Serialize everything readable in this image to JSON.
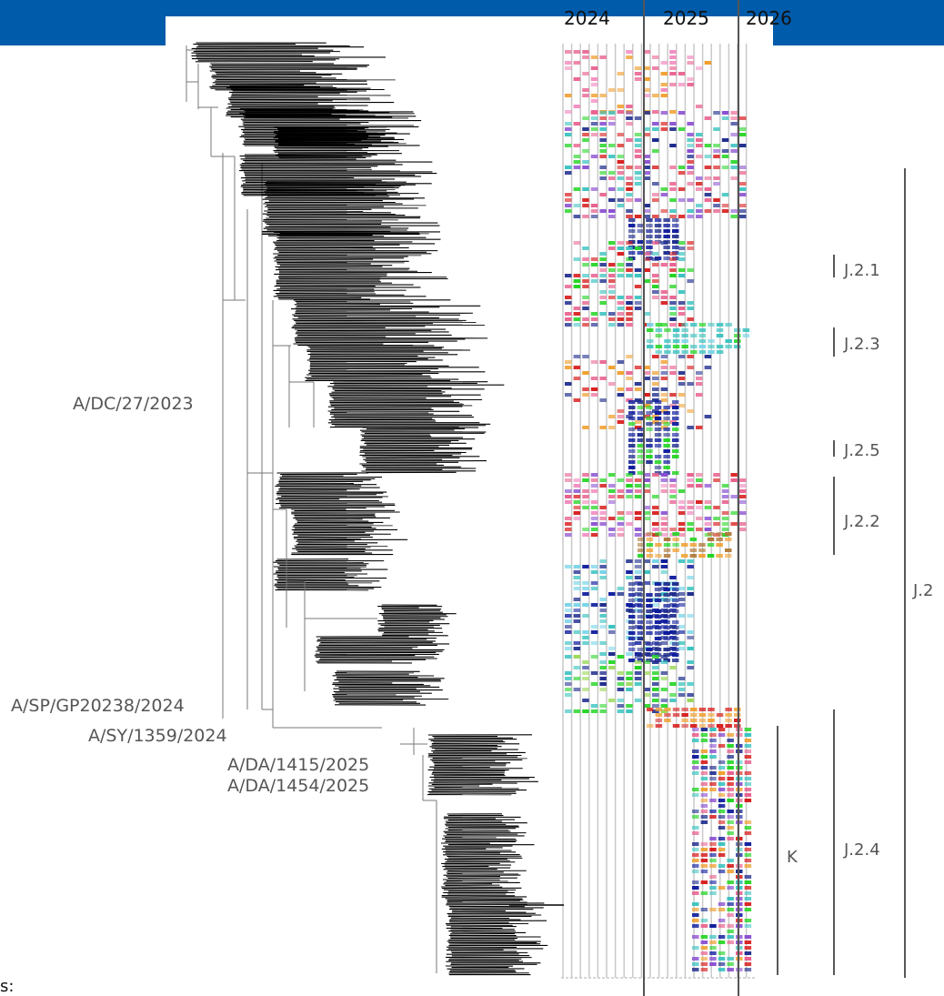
{
  "colors": {
    "banner": "#005BAA",
    "tree": "#000000",
    "label": "#555555",
    "grid": "#c9c9c9",
    "divider": "#555555",
    "palette": [
      "#1c2a8c",
      "#0c1a9c",
      "#22d422",
      "#d81e1e",
      "#e8608f",
      "#3bc3c0",
      "#8a4fd1",
      "#f0a030",
      "#77d4e8",
      "#b07a3a",
      "#f28cc0",
      "#9bd85a"
    ]
  },
  "timeline": {
    "years": [
      "2024",
      "2025",
      "2026"
    ]
  },
  "strains": [
    {
      "label": "A/DC/27/2023"
    },
    {
      "label": "A/SP/GP20238/2024"
    },
    {
      "label": "A/SY/1359/2024"
    },
    {
      "label": "A/DA/1415/2025"
    },
    {
      "label": "A/DA/1454/2025"
    }
  ],
  "clades": [
    {
      "label": "J.2.1"
    },
    {
      "label": "J.2.3"
    },
    {
      "label": "J.2.5"
    },
    {
      "label": "J.2.2"
    },
    {
      "label": "J.2"
    },
    {
      "label": "K"
    },
    {
      "label": "J.2.4"
    }
  ],
  "footer_text": "s:"
}
